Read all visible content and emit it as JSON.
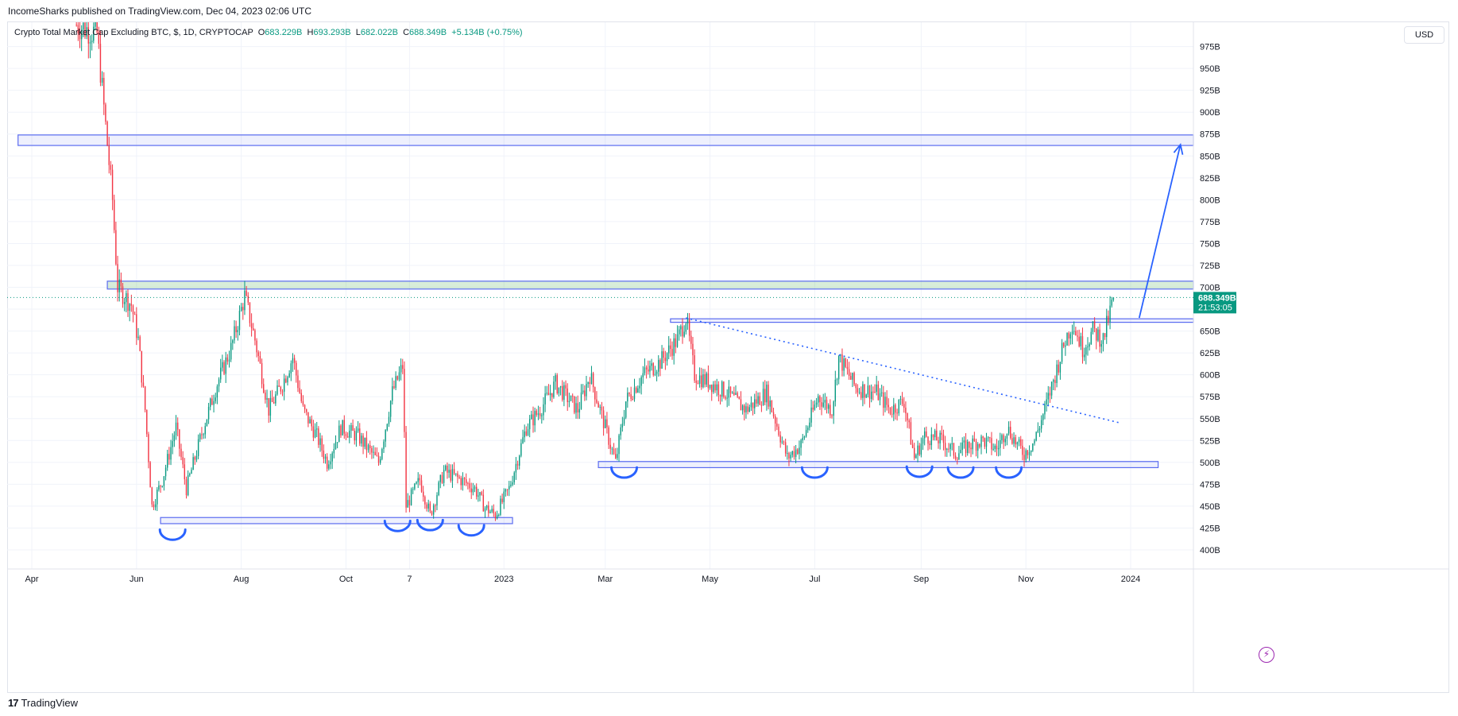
{
  "header": {
    "publish_line": "IncomeSharks published on TradingView.com, Dec 04, 2023 02:06 UTC"
  },
  "legend": {
    "symbol": "Crypto Total Market Cap Excluding BTC, $, 1D, CRYPTOCAP",
    "open_label": "O",
    "open": "683.229B",
    "high_label": "H",
    "high": "693.293B",
    "low_label": "L",
    "low": "682.022B",
    "close_label": "C",
    "close": "688.349B",
    "change": "+5.134B (+0.75%)"
  },
  "price_scale": {
    "currency": "USD",
    "last_price": "688.349B",
    "countdown": "21:53:05"
  },
  "footer": {
    "brand": "TradingView",
    "brand_mark": "17"
  },
  "flash_icon": "lightning-icon",
  "colors": {
    "up": "#089981",
    "down": "#f23645",
    "zone_blue": "#5b6cf0",
    "zone_green": "#4caf50",
    "arrow_blue": "#2962ff",
    "flash": "#9c27b0"
  },
  "chart_data": {
    "type": "candlestick",
    "title": "Crypto Total Market Cap Excluding BTC, $, 1D, CRYPTOCAP",
    "xlabel": "",
    "ylabel": "",
    "ylim": [
      375,
      1000
    ],
    "y_ticks": [
      400,
      425,
      450,
      475,
      500,
      525,
      550,
      575,
      600,
      625,
      650,
      675,
      700,
      725,
      750,
      775,
      800,
      825,
      850,
      875,
      900,
      925,
      950,
      975
    ],
    "y_tick_labels": [
      "400B",
      "425B",
      "450B",
      "475B",
      "500B",
      "525B",
      "550B",
      "575B",
      "600B",
      "625B",
      "650B",
      "675B",
      "700B",
      "725B",
      "750B",
      "775B",
      "800B",
      "825B",
      "850B",
      "875B",
      "900B",
      "925B",
      "950B",
      "975B"
    ],
    "time_range_days": [
      0,
      640
    ],
    "x_ticks": [
      {
        "day": 0,
        "label": "Apr"
      },
      {
        "day": 61,
        "label": "Jun"
      },
      {
        "day": 122,
        "label": "Aug"
      },
      {
        "day": 183,
        "label": "Oct"
      },
      {
        "day": 220,
        "label": "7"
      },
      {
        "day": 275,
        "label": "2023"
      },
      {
        "day": 334,
        "label": "Mar"
      },
      {
        "day": 395,
        "label": "May"
      },
      {
        "day": 456,
        "label": "Jul"
      },
      {
        "day": 518,
        "label": "Sep"
      },
      {
        "day": 579,
        "label": "Nov"
      },
      {
        "day": 640,
        "label": "2024"
      }
    ],
    "price_path": [
      [
        26,
        1000
      ],
      [
        38,
        990
      ],
      [
        47,
        800
      ],
      [
        50,
        700
      ],
      [
        58,
        680
      ],
      [
        62,
        640
      ],
      [
        66,
        560
      ],
      [
        70,
        450
      ],
      [
        76,
        480
      ],
      [
        84,
        540
      ],
      [
        90,
        470
      ],
      [
        100,
        540
      ],
      [
        108,
        590
      ],
      [
        116,
        630
      ],
      [
        124,
        690
      ],
      [
        130,
        640
      ],
      [
        138,
        560
      ],
      [
        146,
        590
      ],
      [
        152,
        620
      ],
      [
        158,
        560
      ],
      [
        166,
        530
      ],
      [
        172,
        500
      ],
      [
        180,
        540
      ],
      [
        190,
        530
      ],
      [
        202,
        500
      ],
      [
        210,
        580
      ],
      [
        216,
        610
      ],
      [
        218,
        450
      ],
      [
        226,
        480
      ],
      [
        232,
        440
      ],
      [
        240,
        490
      ],
      [
        250,
        480
      ],
      [
        258,
        470
      ],
      [
        264,
        448
      ],
      [
        270,
        440
      ],
      [
        278,
        470
      ],
      [
        288,
        540
      ],
      [
        296,
        560
      ],
      [
        305,
        590
      ],
      [
        318,
        560
      ],
      [
        325,
        600
      ],
      [
        334,
        540
      ],
      [
        340,
        500
      ],
      [
        346,
        570
      ],
      [
        356,
        600
      ],
      [
        366,
        615
      ],
      [
        376,
        640
      ],
      [
        381,
        665
      ],
      [
        386,
        600
      ],
      [
        396,
        590
      ],
      [
        404,
        580
      ],
      [
        416,
        560
      ],
      [
        428,
        580
      ],
      [
        440,
        505
      ],
      [
        448,
        520
      ],
      [
        458,
        575
      ],
      [
        466,
        560
      ],
      [
        470,
        620
      ],
      [
        480,
        585
      ],
      [
        492,
        580
      ],
      [
        500,
        560
      ],
      [
        508,
        570
      ],
      [
        514,
        505
      ],
      [
        520,
        530
      ],
      [
        530,
        525
      ],
      [
        538,
        510
      ],
      [
        546,
        520
      ],
      [
        554,
        525
      ],
      [
        562,
        515
      ],
      [
        568,
        540
      ],
      [
        574,
        520
      ],
      [
        578,
        510
      ],
      [
        584,
        525
      ],
      [
        590,
        560
      ],
      [
        596,
        600
      ],
      [
        602,
        640
      ],
      [
        606,
        660
      ],
      [
        612,
        630
      ],
      [
        618,
        650
      ],
      [
        624,
        640
      ],
      [
        630,
        688
      ]
    ],
    "last_value": 688.349,
    "zones": [
      {
        "name": "resistance-875",
        "from_day": -8,
        "to_day": 704,
        "low": 862,
        "high": 874,
        "color": "blue"
      },
      {
        "name": "resistance-700",
        "from_day": 44,
        "to_day": 704,
        "low": 698,
        "high": 707,
        "color": "green"
      },
      {
        "name": "breakout-660",
        "from_day": 372,
        "to_day": 688,
        "low": 660,
        "high": 664,
        "color": "blue"
      },
      {
        "name": "support-500",
        "from_day": 330,
        "to_day": 656,
        "low": 494,
        "high": 501,
        "color": "blue"
      },
      {
        "name": "support-430",
        "from_day": 75,
        "to_day": 280,
        "low": 430,
        "high": 437,
        "color": "blue"
      }
    ],
    "trendline": {
      "from": [
        381,
        665
      ],
      "to": [
        634,
        545
      ]
    },
    "arrow": {
      "from": [
        645,
        665
      ],
      "to": [
        669,
        863
      ]
    },
    "bottoms": [
      {
        "day": 82,
        "value": 425
      },
      {
        "day": 213,
        "value": 435
      },
      {
        "day": 232,
        "value": 436
      },
      {
        "day": 256,
        "value": 430
      },
      {
        "day": 345,
        "value": 496
      },
      {
        "day": 456,
        "value": 496
      },
      {
        "day": 517,
        "value": 497
      },
      {
        "day": 541,
        "value": 496
      },
      {
        "day": 569,
        "value": 496
      }
    ]
  }
}
